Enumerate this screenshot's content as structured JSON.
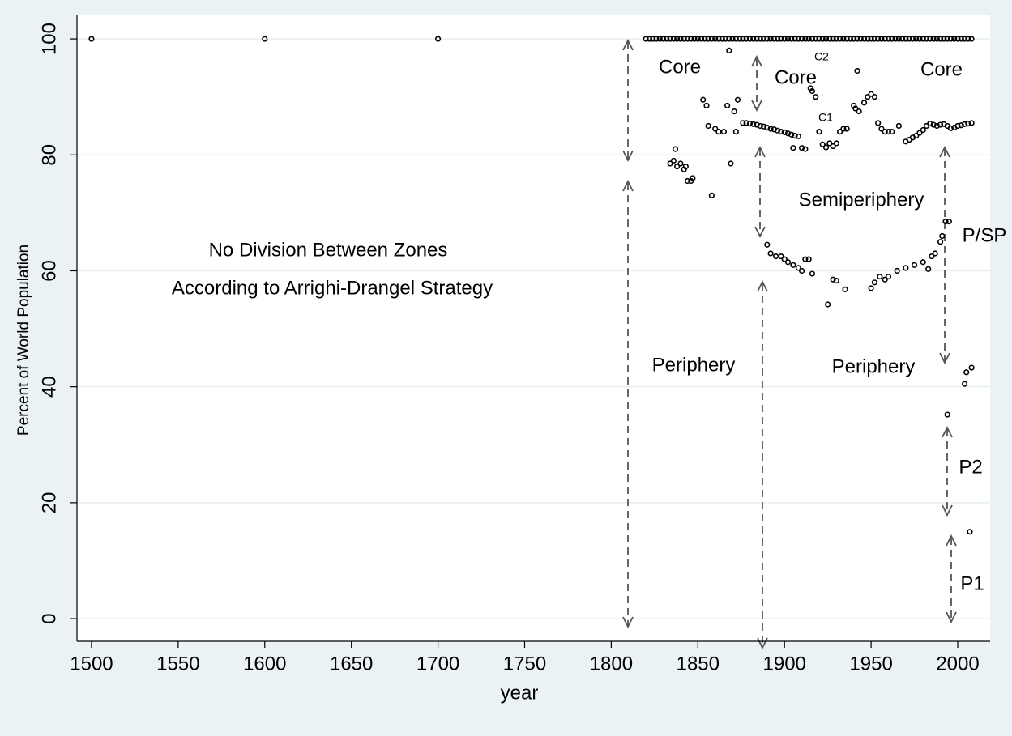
{
  "chart_data": {
    "type": "scatter",
    "y_label": "Percent of World Population",
    "x_label": "year",
    "xlim": [
      1491.6,
      2018.7
    ],
    "ylim": [
      -3.9,
      104.2
    ],
    "xticks": [
      1500,
      1550,
      1600,
      1650,
      1700,
      1750,
      1800,
      1850,
      1900,
      1950,
      2000
    ],
    "yticks": [
      0,
      20,
      40,
      60,
      80,
      100
    ],
    "grid": true,
    "annotations": [
      "Core",
      "Core",
      "Core",
      "C2",
      "C1",
      "Semiperiphery",
      "P/SP",
      "Periphery",
      "Periphery",
      "P2",
      "P1",
      "No Division Between Zones",
      "According to Arrighi-Drangel Strategy"
    ],
    "series": [
      {
        "color": "#000000",
        "x": [
          1500,
          1600,
          1700
        ],
        "values": [
          100,
          100,
          100
        ]
      },
      {
        "color": "#000000",
        "x": [
          1820,
          1822,
          1824,
          1826,
          1828,
          1830,
          1832,
          1834,
          1836,
          1838,
          1840,
          1842,
          1844,
          1846,
          1848,
          1850,
          1852,
          1854,
          1856,
          1858,
          1860,
          1862,
          1864,
          1866,
          1868,
          1870,
          1872,
          1874,
          1876,
          1878,
          1880,
          1882,
          1884,
          1886,
          1888,
          1890,
          1892,
          1894,
          1896,
          1898,
          1900,
          1902,
          1904,
          1906,
          1908,
          1910,
          1912,
          1914,
          1916,
          1918,
          1920,
          1922,
          1924,
          1926,
          1928,
          1930,
          1932,
          1934,
          1936,
          1938,
          1940,
          1942,
          1944,
          1946,
          1948,
          1950,
          1952,
          1954,
          1956,
          1958,
          1960,
          1962,
          1964,
          1966,
          1968,
          1970,
          1972,
          1974,
          1976,
          1978,
          1980,
          1982,
          1984,
          1986,
          1988,
          1990,
          1992,
          1994,
          1996,
          1998,
          2000,
          2002,
          2004,
          2006,
          2008
        ],
        "values": [
          100,
          100,
          100,
          100,
          100,
          100,
          100,
          100,
          100,
          100,
          100,
          100,
          100,
          100,
          100,
          100,
          100,
          100,
          100,
          100,
          100,
          100,
          100,
          100,
          100,
          100,
          100,
          100,
          100,
          100,
          100,
          100,
          100,
          100,
          100,
          100,
          100,
          100,
          100,
          100,
          100,
          100,
          100,
          100,
          100,
          100,
          100,
          100,
          100,
          100,
          100,
          100,
          100,
          100,
          100,
          100,
          100,
          100,
          100,
          100,
          100,
          100,
          100,
          100,
          100,
          100,
          100,
          100,
          100,
          100,
          100,
          100,
          100,
          100,
          100,
          100,
          100,
          100,
          100,
          100,
          100,
          100,
          100,
          100,
          100,
          100,
          100,
          100,
          100,
          100,
          100,
          100,
          100,
          100,
          100
        ]
      },
      {
        "color": "#000000",
        "x": [
          1834,
          1836,
          1837,
          1838,
          1840,
          1842,
          1843,
          1844,
          1846,
          1847,
          1853,
          1855,
          1856,
          1858,
          1860,
          1862,
          1865,
          1867,
          1868,
          1869,
          1871,
          1872,
          1873,
          1876,
          1878,
          1880,
          1882,
          1884,
          1886,
          1888,
          1890,
          1892,
          1894,
          1896,
          1898,
          1900,
          1902,
          1904,
          1906,
          1908,
          1905,
          1910,
          1912,
          1915,
          1916,
          1918,
          1920,
          1922,
          1924,
          1926,
          1928,
          1930,
          1932,
          1934,
          1936,
          1940,
          1941,
          1942,
          1943,
          1946,
          1948,
          1950,
          1952,
          1954,
          1956,
          1958,
          1960,
          1962,
          1966,
          1970,
          1972,
          1974,
          1976,
          1978,
          1980,
          1982,
          1984,
          1986,
          1988,
          1990,
          1992,
          1994,
          1996,
          1998,
          2000,
          2002,
          2004,
          2006,
          2008
        ],
        "values": [
          78.5,
          79,
          81,
          78,
          78.5,
          77.5,
          78,
          75.5,
          75.5,
          76,
          89.5,
          88.5,
          85,
          73,
          84.5,
          84,
          84,
          88.5,
          98,
          78.5,
          87.5,
          84,
          89.5,
          85.5,
          85.5,
          85.4,
          85.3,
          85.2,
          85,
          84.9,
          84.7,
          84.5,
          84.4,
          84.2,
          84,
          83.9,
          83.7,
          83.5,
          83.3,
          83.2,
          81.2,
          81.2,
          81,
          91.5,
          91,
          90,
          84,
          81.8,
          81.3,
          82,
          81.5,
          82,
          84,
          84.5,
          84.5,
          88.5,
          88,
          94.5,
          87.5,
          89,
          90,
          90.5,
          90,
          85.5,
          84.5,
          84,
          84,
          84,
          85,
          82.3,
          82.6,
          83,
          83.3,
          83.8,
          84.3,
          85,
          85.4,
          85.2,
          85,
          85.2,
          85.3,
          85,
          84.6,
          84.7,
          85,
          85.1,
          85.3,
          85.4,
          85.5
        ]
      },
      {
        "color": "#000000",
        "x": [
          1890,
          1892,
          1895,
          1898,
          1900,
          1902,
          1905,
          1908,
          1910,
          1912,
          1914,
          1916,
          1925,
          1928,
          1930,
          1935,
          1950,
          1952,
          1955,
          1958,
          1960,
          1965,
          1970,
          1975,
          1980,
          1983,
          1985,
          1987,
          1990,
          1991,
          1993,
          1995
        ],
        "values": [
          64.5,
          63,
          62.5,
          62.5,
          62,
          61.5,
          61,
          60.5,
          60,
          62,
          62,
          59.5,
          54.2,
          58.5,
          58.3,
          56.8,
          57,
          58,
          59,
          58.5,
          59,
          60,
          60.5,
          61,
          61.5,
          60.3,
          62.5,
          63,
          65,
          66,
          68.5,
          68.5
        ]
      },
      {
        "color": "#000000",
        "x": [
          1994,
          2004,
          2005,
          2008,
          2007
        ],
        "values": [
          35.2,
          40.5,
          42.5,
          43.3,
          15
        ]
      }
    ]
  }
}
